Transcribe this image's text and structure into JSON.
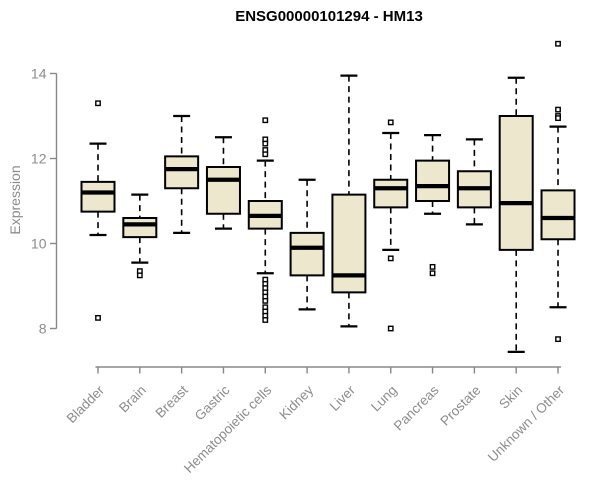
{
  "chart_data": {
    "type": "boxplot",
    "title": "ENSG00000101294 - HM13",
    "ylabel": "Expression",
    "xlabel": "",
    "yticks": [
      8,
      10,
      12,
      14
    ],
    "ylim": [
      7.0,
      14.9
    ],
    "grid": false,
    "legend": "none",
    "colors": {
      "box_fill": "#EDE8CD",
      "box_stroke": "#000000",
      "median": "#000000",
      "whisker": "#000000",
      "axis_line": "#888888",
      "axis_text": "#8C8C8C",
      "title_text": "#000000",
      "background": "#FFFFFF"
    },
    "categories": [
      "Bladder",
      "Brain",
      "Breast",
      "Gastric",
      "Hematopoietic cells",
      "Kidney",
      "Liver",
      "Lung",
      "Pancreas",
      "Prostate",
      "Skin",
      "Unknown / Other"
    ],
    "boxes": [
      {
        "category": "Bladder",
        "whisker_low": 10.2,
        "q1": 10.75,
        "median": 11.2,
        "q3": 11.45,
        "whisker_high": 12.35,
        "outliers": [
          13.3,
          8.25
        ]
      },
      {
        "category": "Brain",
        "whisker_low": 9.55,
        "q1": 10.15,
        "median": 10.45,
        "q3": 10.6,
        "whisker_high": 11.15,
        "outliers": [
          9.35,
          9.25
        ]
      },
      {
        "category": "Breast",
        "whisker_low": 10.25,
        "q1": 11.3,
        "median": 11.75,
        "q3": 12.05,
        "whisker_high": 13.0,
        "outliers": []
      },
      {
        "category": "Gastric",
        "whisker_low": 10.35,
        "q1": 10.7,
        "median": 11.5,
        "q3": 11.8,
        "whisker_high": 12.5,
        "outliers": []
      },
      {
        "category": "Hematopoietic cells",
        "whisker_low": 9.3,
        "q1": 10.35,
        "median": 10.65,
        "q3": 11.0,
        "whisker_high": 11.95,
        "outliers": [
          12.9,
          12.45,
          12.35,
          12.2,
          12.1,
          9.15,
          9.05,
          8.95,
          8.85,
          8.75,
          8.65,
          8.5,
          8.4,
          8.3,
          8.2
        ]
      },
      {
        "category": "Kidney",
        "whisker_low": 8.45,
        "q1": 9.25,
        "median": 9.9,
        "q3": 10.25,
        "whisker_high": 11.5,
        "outliers": []
      },
      {
        "category": "Liver",
        "whisker_low": 8.05,
        "q1": 8.85,
        "median": 9.25,
        "q3": 11.15,
        "whisker_high": 13.95,
        "outliers": []
      },
      {
        "category": "Lung",
        "whisker_low": 9.85,
        "q1": 10.85,
        "median": 11.3,
        "q3": 11.5,
        "whisker_high": 12.6,
        "outliers": [
          12.85,
          9.65,
          8.0
        ]
      },
      {
        "category": "Pancreas",
        "whisker_low": 10.7,
        "q1": 11.0,
        "median": 11.35,
        "q3": 11.95,
        "whisker_high": 12.55,
        "outliers": [
          9.45,
          9.3
        ]
      },
      {
        "category": "Prostate",
        "whisker_low": 10.45,
        "q1": 10.85,
        "median": 11.3,
        "q3": 11.7,
        "whisker_high": 12.45,
        "outliers": []
      },
      {
        "category": "Skin",
        "whisker_low": 7.45,
        "q1": 9.85,
        "median": 10.95,
        "q3": 13.0,
        "whisker_high": 13.9,
        "outliers": []
      },
      {
        "category": "Unknown / Other",
        "whisker_low": 8.5,
        "q1": 10.1,
        "median": 10.6,
        "q3": 11.25,
        "whisker_high": 12.75,
        "outliers": [
          14.7,
          13.15,
          13.0,
          12.95,
          7.75
        ]
      }
    ]
  }
}
